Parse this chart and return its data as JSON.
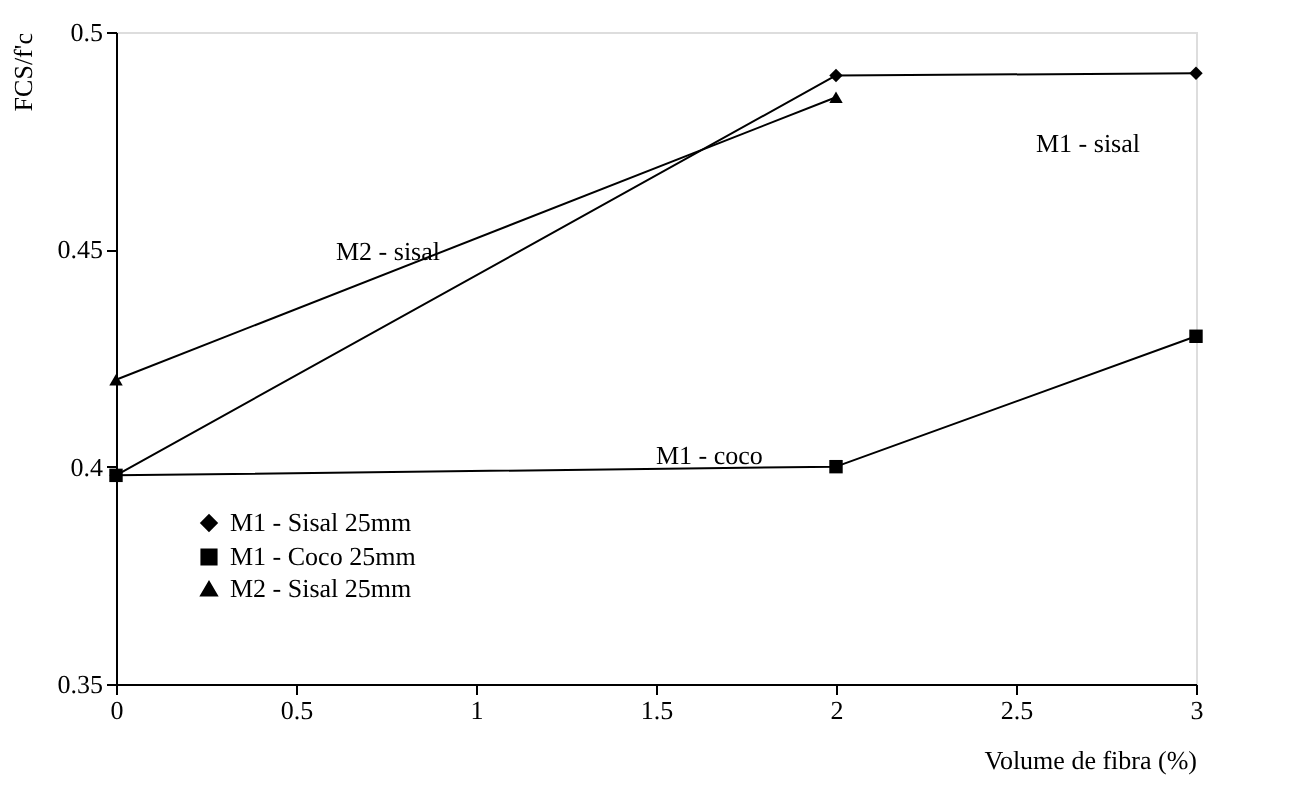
{
  "chart_data": {
    "type": "line",
    "xlabel": "Volume de fibra (%)",
    "ylabel": "FCS/f'c",
    "x": [
      0,
      2,
      3
    ],
    "series": [
      {
        "name": "M1 - Sisal 25mm",
        "color": "#000000",
        "marker": "diamond",
        "values": [
          0.398,
          0.49,
          0.4905
        ]
      },
      {
        "name": "M1 - Coco 25mm",
        "color": "#000000",
        "marker": "square",
        "values": [
          0.398,
          0.4,
          0.43
        ]
      },
      {
        "name": "M2 - Sisal 25mm",
        "color": "#000000",
        "marker": "triangle",
        "x": [
          0,
          2
        ],
        "values": [
          0.42,
          0.485
        ]
      }
    ],
    "annotations": [
      "M1 - sisal",
      "M2 - sisal",
      "M1 - coco"
    ],
    "xlim": [
      0,
      3
    ],
    "xticks": [
      0,
      0.5,
      1,
      1.5,
      2,
      2.5,
      3
    ],
    "ylim": [
      0.35,
      0.5
    ],
    "yticks": [
      0.35,
      0.4,
      0.45,
      0.5
    ],
    "grid": false,
    "legend": "bottom left",
    "line_style": "solid"
  }
}
